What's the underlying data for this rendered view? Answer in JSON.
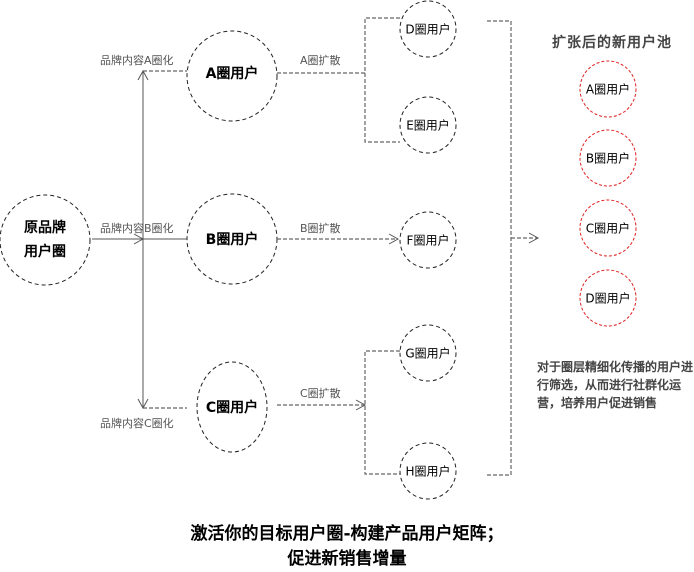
{
  "origin": {
    "label_line1": "原品牌",
    "label_line2": "用户圈"
  },
  "branch_labels": [
    "品牌内容A圈化",
    "品牌内容B圈化",
    "品牌内容C圈化"
  ],
  "primary_circles": [
    "A圈用户",
    "B圈用户",
    "C圈用户"
  ],
  "spread_labels": [
    "A圈扩散",
    "B圈扩散",
    "C圈扩散"
  ],
  "secondary_circles": [
    "D圈用户",
    "E圈用户",
    "F圈用户",
    "G圈用户",
    "H圈用户"
  ],
  "pool": {
    "title": "扩张后的新用户池",
    "circles": [
      "A圈用户",
      "B圈用户",
      "C圈用户",
      "D圈用户"
    ],
    "description": "对于圈层精细化传播的用户进行筛选，从而进行社群化运营，培养用户促进销售"
  },
  "footer": {
    "line1": "激活你的目标用户圈-构建产品用户矩阵；",
    "line2": "促进新销售增量"
  },
  "colors": {
    "pool_circle": "#e02020",
    "line": "#555555",
    "circle": "#222222"
  }
}
